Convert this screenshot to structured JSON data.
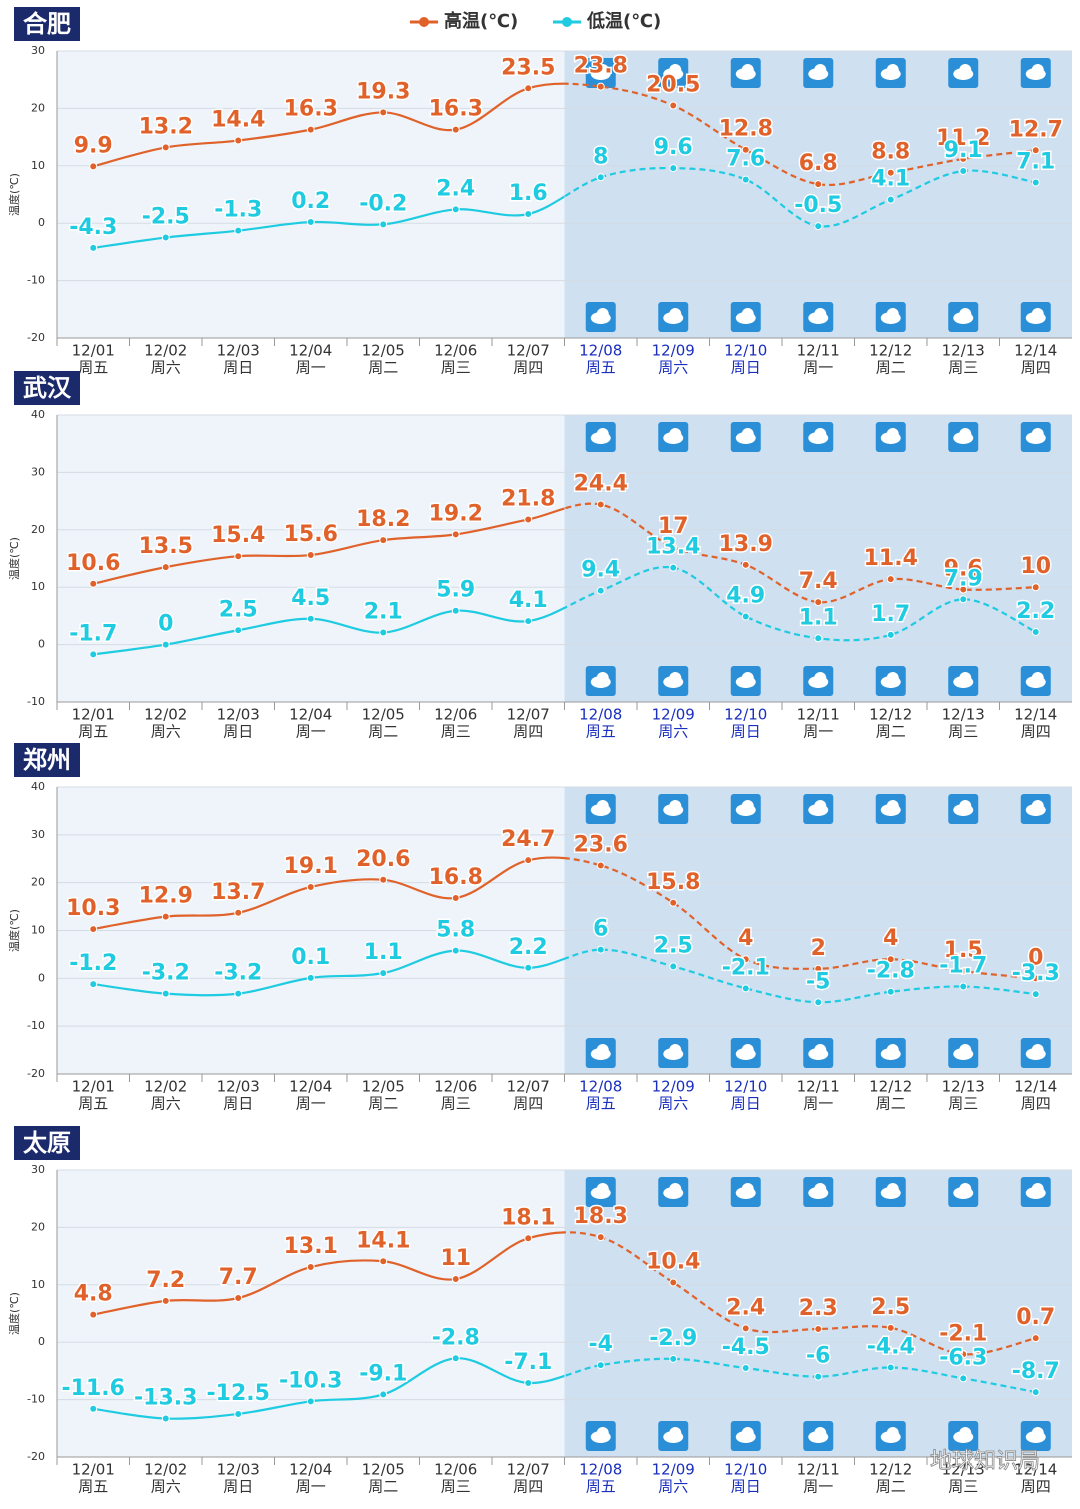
{
  "chart_data": [
    {
      "type": "line",
      "title": "合肥",
      "ylabel": "温度(℃)",
      "categories": [
        "12/01",
        "12/02",
        "12/03",
        "12/04",
        "12/05",
        "12/06",
        "12/07",
        "12/08",
        "12/09",
        "12/10",
        "12/11",
        "12/12",
        "12/13",
        "12/14"
      ],
      "sublabels": [
        "周五",
        "周六",
        "周日",
        "周一",
        "周二",
        "周三",
        "周四",
        "周五",
        "周六",
        "周日",
        "周一",
        "周二",
        "周三",
        "周四"
      ],
      "forecast_start": "12/08",
      "highlight_range": [
        "12/08",
        "12/10"
      ],
      "highlight_color": "#1a2fbf",
      "ylim": [
        -20,
        30
      ],
      "yticks": [
        -20,
        -10,
        0,
        10,
        20,
        30
      ],
      "grid": true,
      "series": [
        {
          "name": "高温(℃)",
          "color": "#e0622a",
          "values": [
            9.9,
            13.2,
            14.4,
            16.3,
            19.3,
            16.3,
            23.5,
            23.8,
            20.5,
            12.8,
            6.8,
            8.8,
            11.2,
            12.7
          ]
        },
        {
          "name": "低温(℃)",
          "color": "#1ecbe1",
          "values": [
            -4.3,
            -2.5,
            -1.3,
            0.2,
            -0.2,
            2.4,
            1.6,
            8,
            9.6,
            7.6,
            -0.5,
            4.1,
            9.1,
            7.1
          ]
        }
      ]
    },
    {
      "type": "line",
      "title": "武汉",
      "ylabel": "温度(℃)",
      "categories": [
        "12/01",
        "12/02",
        "12/03",
        "12/04",
        "12/05",
        "12/06",
        "12/07",
        "12/08",
        "12/09",
        "12/10",
        "12/11",
        "12/12",
        "12/13",
        "12/14"
      ],
      "sublabels": [
        "周五",
        "周六",
        "周日",
        "周一",
        "周二",
        "周三",
        "周四",
        "周五",
        "周六",
        "周日",
        "周一",
        "周二",
        "周三",
        "周四"
      ],
      "forecast_start": "12/08",
      "highlight_range": [
        "12/08",
        "12/10"
      ],
      "highlight_color": "#1a2fbf",
      "ylim": [
        -10,
        40
      ],
      "yticks": [
        -10,
        0,
        10,
        20,
        30,
        40
      ],
      "grid": true,
      "series": [
        {
          "color": "#e0622a",
          "values": [
            10.6,
            13.5,
            15.4,
            15.6,
            18.2,
            19.2,
            21.8,
            24.4,
            17,
            13.9,
            7.4,
            11.4,
            9.6,
            10
          ]
        },
        {
          "color": "#1ecbe1",
          "values": [
            -1.7,
            0,
            2.5,
            4.5,
            2.1,
            5.9,
            4.1,
            9.4,
            13.4,
            4.9,
            1.1,
            1.7,
            7.9,
            2.2
          ]
        }
      ]
    },
    {
      "type": "line",
      "title": "郑州",
      "ylabel": "温度(℃)",
      "categories": [
        "12/01",
        "12/02",
        "12/03",
        "12/04",
        "12/05",
        "12/06",
        "12/07",
        "12/08",
        "12/09",
        "12/10",
        "12/11",
        "12/12",
        "12/13",
        "12/14"
      ],
      "sublabels": [
        "周五",
        "周六",
        "周日",
        "周一",
        "周二",
        "周三",
        "周四",
        "周五",
        "周六",
        "周日",
        "周一",
        "周二",
        "周三",
        "周四"
      ],
      "forecast_start": "12/08",
      "highlight_range": [
        "12/08",
        "12/10"
      ],
      "highlight_color": "#1a2fbf",
      "ylim": [
        -20,
        40
      ],
      "yticks": [
        -20,
        -10,
        0,
        10,
        20,
        30,
        40
      ],
      "grid": true,
      "series": [
        {
          "color": "#e0622a",
          "values": [
            10.3,
            12.9,
            13.7,
            19.1,
            20.6,
            16.8,
            24.7,
            23.6,
            15.8,
            4,
            2,
            4,
            1.5,
            0
          ]
        },
        {
          "color": "#1ecbe1",
          "values": [
            -1.2,
            -3.2,
            -3.2,
            0.1,
            1.1,
            5.8,
            2.2,
            6,
            2.5,
            -2.1,
            -5,
            -2.8,
            -1.7,
            -3.3
          ]
        }
      ]
    },
    {
      "type": "line",
      "title": "太原",
      "ylabel": "温度(℃)",
      "categories": [
        "12/01",
        "12/02",
        "12/03",
        "12/04",
        "12/05",
        "12/06",
        "12/07",
        "12/08",
        "12/09",
        "12/10",
        "12/11",
        "12/12",
        "12/13",
        "12/14"
      ],
      "sublabels": [
        "周五",
        "周六",
        "周日",
        "周一",
        "周二",
        "周三",
        "周四",
        "周五",
        "周六",
        "周日",
        "周一",
        "周二",
        "周三",
        "周四"
      ],
      "forecast_start": "12/08",
      "highlight_range": [
        "12/08",
        "12/10"
      ],
      "highlight_color": "#1a2fbf",
      "ylim": [
        -20,
        30
      ],
      "yticks": [
        -20,
        -10,
        0,
        10,
        20,
        30
      ],
      "grid": true,
      "series": [
        {
          "color": "#e0622a",
          "values": [
            4.8,
            7.2,
            7.7,
            13.1,
            14.1,
            11,
            18.1,
            18.3,
            10.4,
            2.4,
            2.3,
            2.5,
            -2.1,
            0.7
          ]
        },
        {
          "color": "#1ecbe1",
          "values": [
            -11.6,
            -13.3,
            -12.5,
            -10.3,
            -9.1,
            -2.8,
            -7.1,
            -4,
            -2.9,
            -4.5,
            -6,
            -4.4,
            -6.3,
            -8.7
          ]
        }
      ]
    }
  ],
  "watermark": "地球知识局"
}
